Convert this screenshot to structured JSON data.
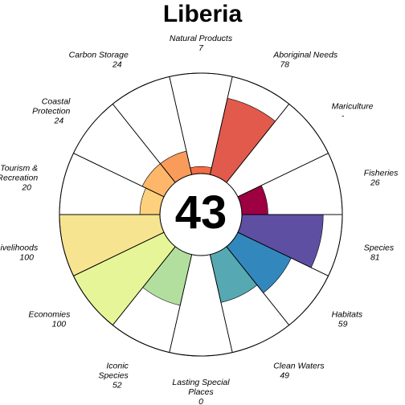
{
  "chart_data": {
    "type": "flower",
    "title": "Liberia",
    "center_score": "43",
    "ylim": [
      0,
      100
    ],
    "petals": [
      {
        "name_lines": [
          "Natural Products"
        ],
        "value_label": "7",
        "value": 7,
        "color": "#f46d43"
      },
      {
        "name_lines": [
          "Aboriginal Needs"
        ],
        "value_label": "78",
        "value": 78,
        "color": "#e25a4c"
      },
      {
        "name_lines": [
          "Mariculture"
        ],
        "value_label": "-",
        "value": null,
        "color": "#d53e4f"
      },
      {
        "name_lines": [
          "Fisheries"
        ],
        "value_label": "26",
        "value": 26,
        "color": "#9e0142"
      },
      {
        "name_lines": [
          "Species"
        ],
        "value_label": "81",
        "value": 81,
        "color": "#5e4fa2"
      },
      {
        "name_lines": [
          "Habitats"
        ],
        "value_label": "59",
        "value": 59,
        "color": "#3288bd"
      },
      {
        "name_lines": [
          "Clean Waters"
        ],
        "value_label": "49",
        "value": 49,
        "color": "#56a9b2"
      },
      {
        "name_lines": [
          "Lasting Special",
          "Places"
        ],
        "value_label": "0",
        "value": 0,
        "color": "#abdda4"
      },
      {
        "name_lines": [
          "Iconic",
          "Species"
        ],
        "value_label": "52",
        "value": 52,
        "color": "#b3df9e"
      },
      {
        "name_lines": [
          "Economies"
        ],
        "value_label": "100",
        "value": 100,
        "color": "#e6f598"
      },
      {
        "name_lines": [
          "Livelihoods"
        ],
        "value_label": "100",
        "value": 100,
        "color": "#f6e491"
      },
      {
        "name_lines": [
          "Tourism &",
          "Recreation"
        ],
        "value_label": "20",
        "value": 20,
        "color": "#fdd07e"
      },
      {
        "name_lines": [
          "Coastal",
          "Protection"
        ],
        "value_label": "24",
        "value": 24,
        "color": "#fdb66a"
      },
      {
        "name_lines": [
          "Carbon Storage"
        ],
        "value_label": "24",
        "value": 24,
        "color": "#f99b5a"
      }
    ]
  }
}
